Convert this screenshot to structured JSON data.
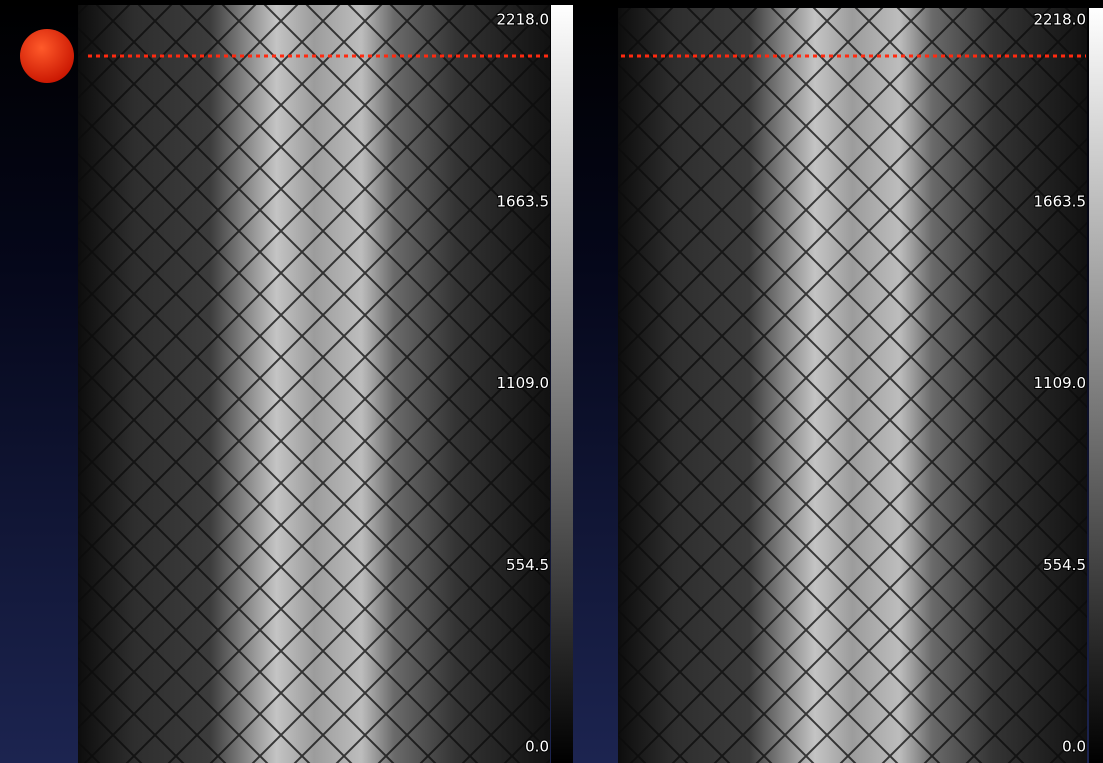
{
  "panels": [
    {
      "colorbar": {
        "range": [
          0,
          2218
        ],
        "ticks": [
          {
            "value": 2218,
            "label": "2218.0"
          },
          {
            "value": 1663.5,
            "label": "1663.5"
          },
          {
            "value": 1109,
            "label": "1109.0"
          },
          {
            "value": 554.5,
            "label": "554.5"
          },
          {
            "value": 0,
            "label": "0.0"
          }
        ]
      }
    },
    {
      "colorbar": {
        "range": [
          0,
          2218
        ],
        "ticks": [
          {
            "value": 2218,
            "label": "2218.0"
          },
          {
            "value": 1663.5,
            "label": "1663.5"
          },
          {
            "value": 1109,
            "label": "1109.0"
          },
          {
            "value": 554.5,
            "label": "554.5"
          },
          {
            "value": 0,
            "label": "0.0"
          }
        ]
      }
    }
  ]
}
